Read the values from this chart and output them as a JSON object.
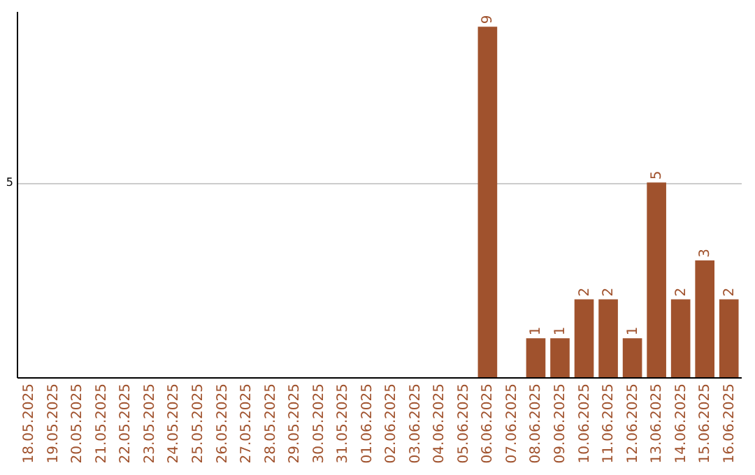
{
  "chart_data": {
    "type": "bar",
    "categories": [
      "18.05.2025",
      "19.05.2025",
      "20.05.2025",
      "21.05.2025",
      "22.05.2025",
      "23.05.2025",
      "24.05.2025",
      "25.05.2025",
      "26.05.2025",
      "27.05.2025",
      "28.05.2025",
      "29.05.2025",
      "30.05.2025",
      "31.05.2025",
      "01.06.2025",
      "02.06.2025",
      "03.06.2025",
      "04.06.2025",
      "05.06.2025",
      "06.06.2025",
      "07.06.2025",
      "08.06.2025",
      "09.06.2025",
      "10.06.2025",
      "11.06.2025",
      "12.06.2025",
      "13.06.2025",
      "14.06.2025",
      "15.06.2025",
      "16.06.2025"
    ],
    "values": [
      null,
      null,
      null,
      null,
      null,
      null,
      null,
      null,
      null,
      null,
      null,
      null,
      null,
      null,
      null,
      null,
      null,
      null,
      null,
      9,
      null,
      1,
      1,
      2,
      2,
      1,
      5,
      2,
      3,
      2
    ],
    "color": "#a0522d",
    "ylim": [
      0,
      9.4
    ],
    "yticks": [
      5
    ],
    "grid": "y",
    "data_labels": true
  }
}
